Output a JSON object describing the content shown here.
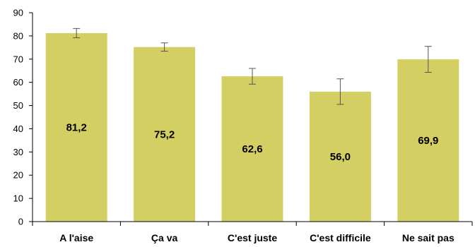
{
  "chart_data": {
    "type": "bar",
    "title": "",
    "xlabel": "",
    "ylabel": "",
    "categories": [
      "A l'aise",
      "Ça va",
      "C'est juste",
      "C'est difficile",
      "Ne sait pas"
    ],
    "values": [
      81.2,
      75.2,
      62.6,
      56.0,
      69.9
    ],
    "value_labels": [
      "81,2",
      "75,2",
      "62,6",
      "56,0",
      "69,9"
    ],
    "error_low": [
      79.2,
      73.4,
      59.2,
      50.5,
      64.3
    ],
    "error_high": [
      83.2,
      77.0,
      66.0,
      61.5,
      75.5
    ],
    "ylim": [
      0,
      90
    ],
    "yticks": [
      0,
      10,
      20,
      30,
      40,
      50,
      60,
      70,
      80,
      90
    ],
    "ytick_labels": [
      "0",
      "10",
      "20",
      "30",
      "40",
      "50",
      "60",
      "70",
      "80",
      "90"
    ],
    "grid": false,
    "legend": "none",
    "bar_color": "#d4cf62",
    "axis_color": "#000000",
    "error_bar_color": "#555555"
  }
}
